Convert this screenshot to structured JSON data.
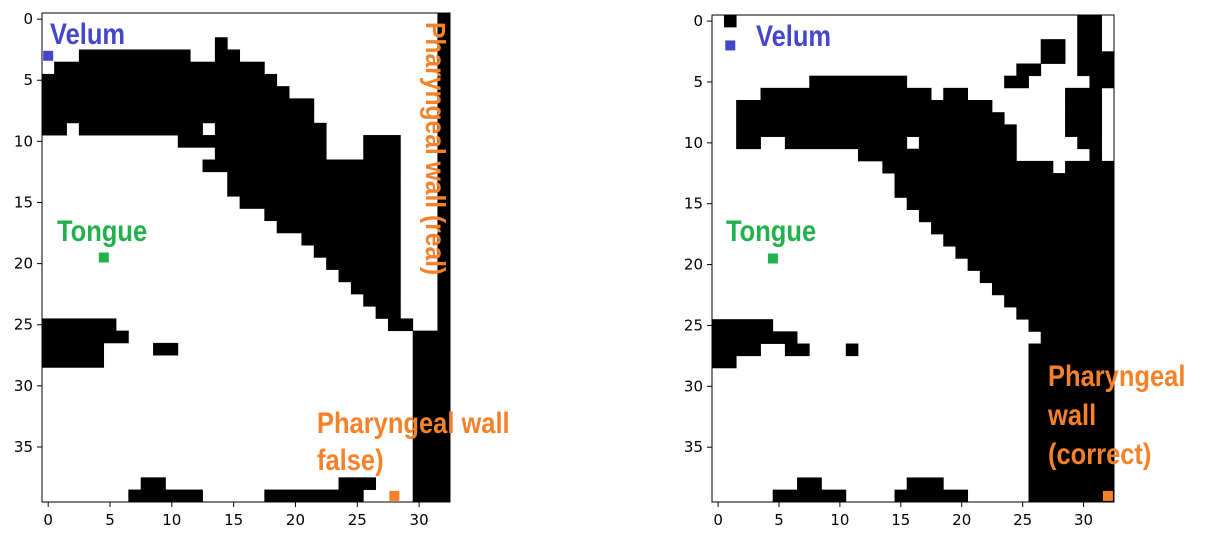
{
  "chart_data": [
    {
      "type": "heatmap",
      "title": "",
      "xlabel": "",
      "ylabel": "",
      "x_range": [
        -0.5,
        32.5
      ],
      "y_range": [
        39.5,
        -0.5
      ],
      "x_ticks": [
        0,
        5,
        10,
        15,
        20,
        25,
        30
      ],
      "y_ticks": [
        0,
        5,
        10,
        15,
        20,
        25,
        30,
        35
      ],
      "colors": {
        "filled": "#000000",
        "empty": "#ffffff"
      },
      "rows": [
        "................................X",
        "................................X",
        "..............X.................X",
        "...XXXXXXXXX..XX................X",
        ".XXXXXXXXXXXXXXXXX..............X",
        "XXXXXXXXXXXXXXXXXXX.............X",
        "XXXXXXXXXXXXXXXXXXXX............X",
        "XXXXXXXXXXXXXXXXXXXXXX..........X",
        "XXXXXXXXXXXXXXXXXXXXXX..........X",
        "XX.XXXXXXXXXX.XXXXXXXXX.........X",
        "...........XXXXXXXXXXXX...XXX...X",
        "..............XXXXXXXXX...XXX...X",
        ".............XXXXXXXXXXXXXXXX...X",
        "...............XXXXXXXXXXXXXX...X",
        "...............XXXXXXXXXXXXXX...X",
        "................XXXXXXXXXXXXX...X",
        "..................XXXXXXXXXXX...X",
        "...................XXXXXXXXXX...X",
        ".....................XXXXXXXX...X",
        "......................XXXXXXX...X",
        ".......................XXXXXX...X",
        "........................XXXXX...X",
        ".........................XXXX...X",
        "..........................XXX...X",
        "...........................XX...X",
        "XXXXXX......................XX..X",
        "XXXXXXX.......................XXX",
        "XXXXX....XX...................XXX",
        "XXXXX.........................XXX",
        "..............................XXX",
        "..............................XXX",
        "..............................XXX",
        "..............................XXX",
        "..............................XXX",
        "..............................XXX",
        "..............................XXX",
        "..............................XXX",
        "..............................XXX",
        "........XX..............XXX...XXX",
        ".......XXXXXX.....XXXXXXXX....XXX"
      ],
      "markers": [
        {
          "label": "Velum",
          "x": 0,
          "y": 3,
          "color": "#4646c8"
        },
        {
          "label": "Tongue",
          "x": 4.5,
          "y": 19.5,
          "color": "#22b14c"
        },
        {
          "label": "Pharyngeal wall false)",
          "x": 28,
          "y": 39,
          "color": "#f5822a"
        }
      ],
      "annotations": [
        {
          "text": "Velum",
          "color": "#4646c8"
        },
        {
          "text": "Tongue",
          "color": "#22b14c"
        },
        {
          "text": "Pharyngeal wall (real)",
          "color": "#f5822a",
          "orientation": "vertical"
        },
        {
          "lines": [
            "Pharyngeal wall",
            "false)"
          ],
          "color": "#f5822a"
        }
      ]
    },
    {
      "type": "heatmap",
      "title": "",
      "xlabel": "",
      "ylabel": "",
      "x_range": [
        -0.5,
        32.5
      ],
      "y_range": [
        39.5,
        -0.5
      ],
      "x_ticks": [
        0,
        5,
        10,
        15,
        20,
        25,
        30
      ],
      "y_ticks": [
        0,
        5,
        10,
        15,
        20,
        25,
        30,
        35
      ],
      "colors": {
        "filled": "#000000",
        "empty": "#ffffff"
      },
      "rows": [
        ".X............................XX.",
        "..............................XX.",
        "...........................XX.XX.",
        "...........................XX.XXX",
        ".........................XX...XXX",
        "........XXXXXXXX........XX.....XX",
        "....XXXXXXXXXXXXXX.XX........XXX.",
        "..XXXXXXXXXXXXXXXXXXXXX......XXX.",
        "..XXXXXXXXXXXXXXXXXXXXXX.....XXX.",
        "..XXXXXXXXXXXXXXXXXXXXXXX....XXX.",
        "..XX..XXXXXXXXXX.XXXXXXXX.....XX.",
        "............XXXXXXXXXXXXX......X.",
        "..............XXXXXXXXXXXXXX.XXXX",
        "...............XXXXXXXXXXXXXXXXXX",
        "...............XXXXXXXXXXXXXXXXXX",
        "................XXXXXXXXXXXXXXXXX",
        ".................XXXXXXXXXXXXXXXX",
        "..................XXXXXXXXXXXXXXX",
        "...................XXXXXXXXXXXXXX",
        "....................XXXXXXXXXXXXX",
        ".....................XXXXXXXXXXXX",
        "......................XXXXXXXXXXX",
        ".......................XXXXXXXXXX",
        "........................XXXXXXXXX",
        ".........................XXXXXXXX",
        "XXXXX.....................XXXXXXX",
        "XXXXXXX....................XXXXXX",
        "XXXX..XX...X..............XXXXXXX",
        "XX........................XXXXXXX",
        "..........................XXXXXXX",
        "..........................XXXXXXX",
        "..........................XXXXXXX",
        "..........................XXXXXXX",
        "..........................XXXXXXX",
        "..........................XXXXXXX",
        "..........................XXXXXXX",
        "..........................XXXXXXX",
        "..........................XXXXXXX",
        ".......XX.......XXX.......XXXXXXX",
        ".....XXXXXX....XXXXXX.....XXXXXXX"
      ],
      "markers": [
        {
          "label": "Velum",
          "x": 1,
          "y": 2,
          "color": "#4646c8"
        },
        {
          "label": "Tongue",
          "x": 4.5,
          "y": 19.5,
          "color": "#22b14c"
        },
        {
          "label": "Pharyngeal wall (correct)",
          "x": 32,
          "y": 39,
          "color": "#f5822a"
        }
      ],
      "annotations": [
        {
          "text": "Velum",
          "color": "#4646c8"
        },
        {
          "text": "Tongue",
          "color": "#22b14c"
        },
        {
          "lines": [
            "Pharyngeal",
            "wall",
            "(correct)"
          ],
          "color": "#f5822a"
        }
      ]
    }
  ]
}
